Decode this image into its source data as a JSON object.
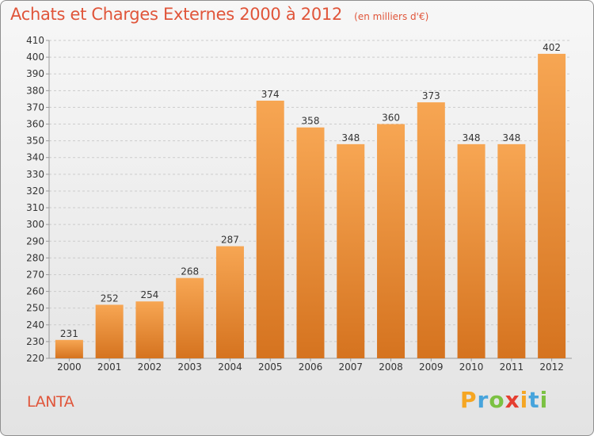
{
  "header": {
    "title": "Achats et Charges Externes 2000 à 2012",
    "unit": "(en milliers d'€)"
  },
  "footer": {
    "commune": "LANTA",
    "logo_text": "Proxiti"
  },
  "colors": {
    "title": "#e0553a",
    "bar_light": "#f7a653",
    "bar_dark": "#d5731f",
    "grid": "#cccccc",
    "logo": [
      "#f5a623",
      "#47a4dc",
      "#7bc142",
      "#e53e30"
    ]
  },
  "chart_data": {
    "type": "bar",
    "title": "Achats et Charges Externes 2000 à 2012",
    "subtitle": "(en milliers d'€)",
    "xlabel": "",
    "ylabel": "",
    "categories": [
      "2000",
      "2001",
      "2002",
      "2003",
      "2004",
      "2005",
      "2006",
      "2007",
      "2008",
      "2009",
      "2010",
      "2011",
      "2012"
    ],
    "values": [
      231,
      252,
      254,
      268,
      287,
      374,
      358,
      348,
      360,
      373,
      348,
      348,
      402
    ],
    "ylim": [
      220,
      410
    ],
    "ytick_step": 10,
    "grid": "horizontal dashed"
  }
}
